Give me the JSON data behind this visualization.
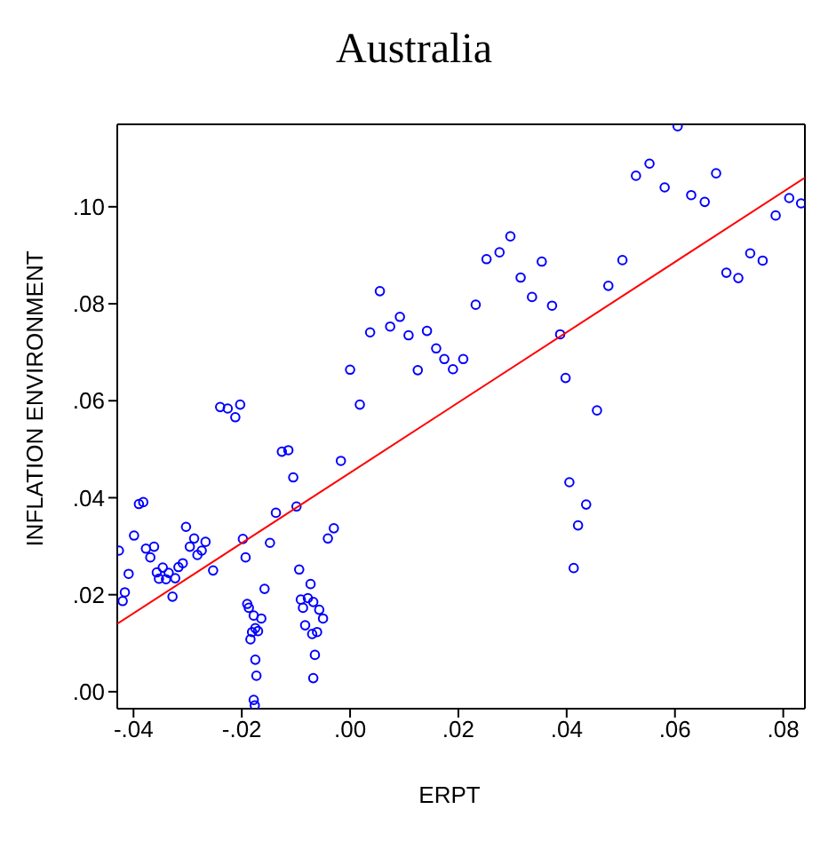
{
  "chart_data": {
    "type": "scatter",
    "title": "Australia",
    "xlabel": "ERPT",
    "ylabel": "INFLATION ENVIRONMENT",
    "xlim": [
      -0.043,
      0.084
    ],
    "ylim": [
      -0.0035,
      0.117
    ],
    "xticks": [
      {
        "value": -0.04,
        "label": "-.04"
      },
      {
        "value": -0.02,
        "label": "-.02"
      },
      {
        "value": 0,
        "label": ".00"
      },
      {
        "value": 0.02,
        "label": ".02"
      },
      {
        "value": 0.04,
        "label": ".04"
      },
      {
        "value": 0.06,
        "label": ".06"
      },
      {
        "value": 0.08,
        "label": ".08"
      }
    ],
    "yticks": [
      {
        "value": 0,
        "label": ".00"
      },
      {
        "value": 0.02,
        "label": ".02"
      },
      {
        "value": 0.04,
        "label": ".04"
      },
      {
        "value": 0.06,
        "label": ".06"
      },
      {
        "value": 0.08,
        "label": ".08"
      },
      {
        "value": 0.1,
        "label": ".10"
      }
    ],
    "marker": "circle",
    "series": [
      {
        "color": "#0000ff",
        "x": [
          -0.0427,
          -0.042,
          -0.0416,
          -0.0409,
          -0.0399,
          -0.039,
          -0.0382,
          -0.0377,
          -0.0369,
          -0.0362,
          -0.0357,
          -0.0353,
          -0.0346,
          -0.034,
          -0.0335,
          -0.0328,
          -0.0323,
          -0.0317,
          -0.0309,
          -0.0303,
          -0.0296,
          -0.0288,
          -0.0282,
          -0.0274,
          -0.0267,
          -0.0253,
          -0.024,
          -0.0226,
          -0.0212,
          -0.0203,
          -0.0198,
          -0.0193,
          -0.019,
          -0.0187,
          -0.0178,
          -0.0164,
          -0.0184,
          -0.0181,
          -0.0175,
          -0.017,
          -0.0175,
          -0.0173,
          -0.0178,
          -0.0176,
          -0.0158,
          -0.0148,
          -0.0137,
          -0.0126,
          -0.0114,
          -0.0105,
          -0.0099,
          -0.0094,
          -0.0091,
          -0.0087,
          -0.0078,
          -0.0073,
          -0.0068,
          -0.0057,
          -0.005,
          -0.0083,
          -0.007,
          -0.0061,
          -0.0065,
          -0.0068,
          -0.0041,
          -0.003,
          -0.0017,
          0.0,
          0.0018,
          0.0037,
          0.0055,
          0.0074,
          0.0092,
          0.0108,
          0.0125,
          0.0142,
          0.0159,
          0.0174,
          0.019,
          0.0209,
          0.0232,
          0.0252,
          0.0276,
          0.0296,
          0.0315,
          0.0336,
          0.0354,
          0.0373,
          0.0388,
          0.0398,
          0.0405,
          0.0421,
          0.0413,
          0.0436,
          0.0456,
          0.0477,
          0.0503,
          0.0528,
          0.0553,
          0.0581,
          0.0605,
          0.063,
          0.0655,
          0.0676,
          0.0695,
          0.0717,
          0.0739,
          0.0762,
          0.0786,
          0.0811,
          0.0833
        ],
        "values": [
          0.0291,
          0.0187,
          0.0205,
          0.0243,
          0.0322,
          0.0387,
          0.0391,
          0.0295,
          0.0277,
          0.0299,
          0.0246,
          0.0233,
          0.0256,
          0.0232,
          0.0245,
          0.0196,
          0.0234,
          0.0257,
          0.0265,
          0.034,
          0.0299,
          0.0316,
          0.0282,
          0.0291,
          0.0309,
          0.025,
          0.0587,
          0.0584,
          0.0566,
          0.0592,
          0.0315,
          0.0277,
          0.0181,
          0.0173,
          0.0157,
          0.0151,
          0.0108,
          0.0123,
          0.0131,
          0.0125,
          0.0066,
          0.0033,
          -0.0017,
          -0.0028,
          0.0212,
          0.0307,
          0.0369,
          0.0495,
          0.0498,
          0.0442,
          0.0382,
          0.0252,
          0.019,
          0.0173,
          0.0193,
          0.0222,
          0.0185,
          0.0169,
          0.0151,
          0.0137,
          0.0119,
          0.0123,
          0.0076,
          0.0028,
          0.0316,
          0.0337,
          0.0476,
          0.0664,
          0.0592,
          0.0741,
          0.0826,
          0.0753,
          0.0773,
          0.0735,
          0.0663,
          0.0744,
          0.0708,
          0.0686,
          0.0665,
          0.0686,
          0.0798,
          0.0892,
          0.0906,
          0.0939,
          0.0854,
          0.0814,
          0.0887,
          0.0796,
          0.0737,
          0.0647,
          0.0432,
          0.0343,
          0.0255,
          0.0386,
          0.058,
          0.0837,
          0.089,
          0.1064,
          0.1089,
          0.104,
          0.1166,
          0.1024,
          0.101,
          0.1069,
          0.0864,
          0.0853,
          0.0904,
          0.0889,
          0.0982,
          0.1018,
          0.1007
        ]
      },
      {
        "type": "line",
        "marker": "none",
        "color": "#ff0000",
        "x": [
          -0.043,
          0.084
        ],
        "values": [
          0.014,
          0.106
        ]
      }
    ]
  }
}
